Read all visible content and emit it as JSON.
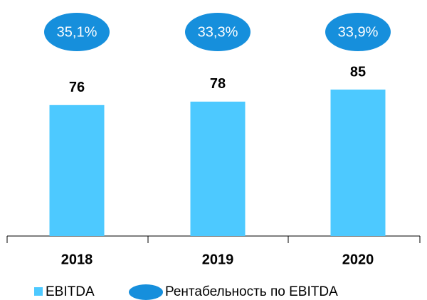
{
  "chart_data": {
    "type": "bar",
    "categories": [
      "2018",
      "2019",
      "2020"
    ],
    "series": [
      {
        "name": "EBITDA",
        "color": "#4dc9ff",
        "values": [
          76,
          78,
          85
        ]
      },
      {
        "name": "Рентабельность по EBITDA",
        "color": "#168fdc",
        "values": [
          35.1,
          33.3,
          33.9
        ],
        "value_labels": [
          "35,1%",
          "33,3%",
          "33,9%"
        ]
      }
    ]
  }
}
